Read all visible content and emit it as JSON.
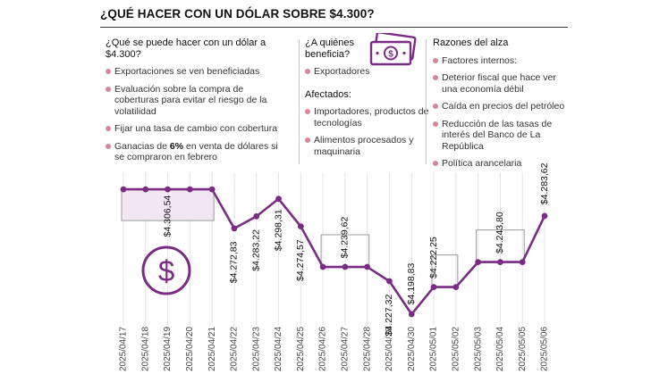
{
  "title": "¿QUÉ HACER CON UN DÓLAR SOBRE $4.300?",
  "col1": {
    "heading": "¿Qué se puede hacer con un dólar a $4.300?",
    "items": [
      "Exportaciones se ven beneficiadas",
      "Evaluación sobre la compra de coberturas para evitar el riesgo de la volatilidad",
      "Fijar una tasa de cambio con cobertura"
    ],
    "item4_pre": "Ganacias de ",
    "item4_bold": "6%",
    "item4_post": " en venta de dólares si se compraron en febrero"
  },
  "col2": {
    "heading": "¿A quiénes beneficia?",
    "items": [
      "Exportadores"
    ],
    "heading2": "Afectados:",
    "items2": [
      "Importadores, productos de tecnologías",
      "Alimentos procesados y maquinaria"
    ]
  },
  "col3": {
    "heading": "Razones del alza",
    "items": [
      "Factores internos:",
      "Deterior fiscal que hace ver una economía débil",
      "Caída en precios del petróleo",
      "Reducción de las tasas de interés del Banco de La República",
      "Política arancelaria"
    ]
  },
  "icons": {
    "money": "money-bill-icon",
    "dollar": "dollar-circle-icon"
  },
  "colors": {
    "line": "#7a2c85",
    "bullet": "#d9869a",
    "fill": "#f3e6f3"
  },
  "chart_data": {
    "type": "line",
    "x": [
      "2025/04/17",
      "2025/04/18",
      "2025/04/19",
      "2025/04/20",
      "2025/04/21",
      "2025/04/22",
      "2025/04/23",
      "2025/04/24",
      "2025/04/25",
      "2025/04/26",
      "2025/04/27",
      "2025/04/28",
      "2025/04/29",
      "2025/04/30",
      "2025/05/01",
      "2025/05/02",
      "2025/05/03",
      "2025/05/04",
      "2025/05/05",
      "2025/05/06"
    ],
    "values": [
      4306.54,
      4306.54,
      4306.54,
      4306.54,
      4306.54,
      4272.83,
      4283.22,
      4298.31,
      4274.57,
      4239.62,
      4239.62,
      4239.62,
      4227.32,
      4198.83,
      4222.25,
      4222.25,
      4243.8,
      4243.8,
      4243.8,
      4283.62
    ],
    "labels": [
      {
        "index": 2,
        "text": "$4.306,54",
        "box": [
          0,
          4
        ]
      },
      {
        "index": 5,
        "text": "$4.272,83"
      },
      {
        "index": 6,
        "text": "$4.283,22"
      },
      {
        "index": 7,
        "text": "$4.298,31"
      },
      {
        "index": 8,
        "text": "$4.274,57"
      },
      {
        "index": 10,
        "text": "$4.239,62",
        "box": [
          9,
          11
        ]
      },
      {
        "index": 12,
        "text": "$4.227,32"
      },
      {
        "index": 13,
        "text": "$4.198,83"
      },
      {
        "index": 14,
        "text": "$4.222,25",
        "box": [
          14,
          15
        ]
      },
      {
        "index": 17,
        "text": "$4.243,80",
        "box": [
          16,
          18
        ]
      },
      {
        "index": 19,
        "text": "$4.283,62"
      }
    ],
    "ylim": [
      4195,
      4312
    ],
    "grid": "vertical"
  }
}
